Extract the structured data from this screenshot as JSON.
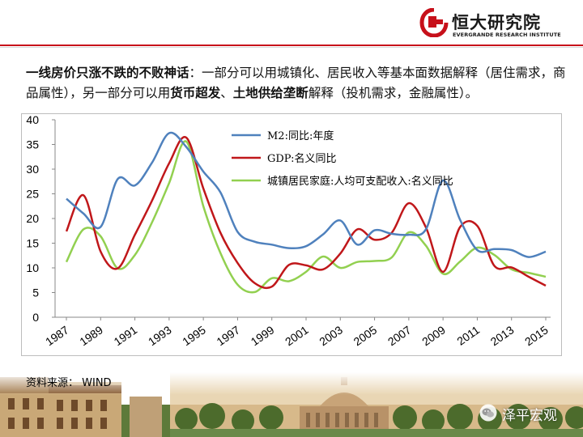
{
  "brand": {
    "name_cn": "恒大研究院",
    "name_en": "EVERGRANDE RESEARCH INSTITUTE",
    "accent_color": "#c7101a"
  },
  "headline": {
    "bold_1": "一线房价只涨不跌的不败神话",
    "text_1": "：一部分可以用城镇化、居民收入等基本面数据解释（居住需求，商品属性），另一部分可以用",
    "bold_2": "货币超发",
    "text_2": "、",
    "bold_3": "土地供给垄断",
    "text_3": "解释（投机需求，金融属性）。"
  },
  "source": {
    "text": "资料来源： WIND"
  },
  "watermark": {
    "text": "泽平宏观",
    "icon": "wechat-icon"
  },
  "chart_data": {
    "type": "line",
    "x": [
      1987,
      1988,
      1989,
      1990,
      1991,
      1992,
      1993,
      1994,
      1995,
      1996,
      1997,
      1998,
      1999,
      2000,
      2001,
      2002,
      2003,
      2004,
      2005,
      2006,
      2007,
      2008,
      2009,
      2010,
      2011,
      2012,
      2013,
      2014,
      2015
    ],
    "xticks": [
      "1987",
      "1989",
      "1991",
      "1993",
      "1995",
      "1997",
      "1999",
      "2001",
      "2003",
      "2005",
      "2007",
      "2009",
      "2011",
      "2013",
      "2015"
    ],
    "ylim": [
      0,
      40
    ],
    "yticks": [
      0,
      5,
      10,
      15,
      20,
      25,
      30,
      35,
      40
    ],
    "legend_position": "top-right",
    "series": [
      {
        "name": "M2:同比:年度",
        "color": "#4f81bd",
        "values": [
          24.0,
          21.0,
          18.3,
          28.0,
          26.7,
          31.3,
          37.3,
          34.5,
          29.5,
          25.3,
          17.3,
          15.3,
          14.7,
          14.0,
          14.4,
          16.8,
          19.6,
          14.7,
          17.6,
          16.9,
          16.7,
          17.8,
          27.7,
          19.7,
          13.6,
          13.8,
          13.6,
          12.2,
          13.3
        ]
      },
      {
        "name": "GDP:名义同比",
        "color": "#c0171a",
        "values": [
          17.4,
          24.7,
          13.3,
          9.9,
          16.7,
          23.6,
          31.2,
          36.4,
          26.1,
          17.1,
          11.0,
          6.9,
          6.2,
          10.6,
          10.5,
          9.7,
          12.9,
          17.8,
          15.7,
          17.1,
          23.1,
          18.2,
          9.2,
          18.3,
          18.5,
          10.4,
          10.1,
          8.2,
          6.4
        ]
      },
      {
        "name": "城镇居民家庭:人均可支配收入:名义同比",
        "color": "#92d050",
        "values": [
          11.2,
          17.8,
          16.4,
          9.9,
          12.6,
          19.2,
          27.2,
          35.6,
          22.5,
          13.0,
          6.6,
          5.1,
          7.9,
          7.3,
          9.2,
          12.3,
          10.0,
          11.2,
          11.4,
          12.1,
          17.2,
          14.5,
          8.8,
          11.3,
          14.1,
          12.6,
          9.7,
          9.0,
          8.2
        ]
      }
    ]
  }
}
